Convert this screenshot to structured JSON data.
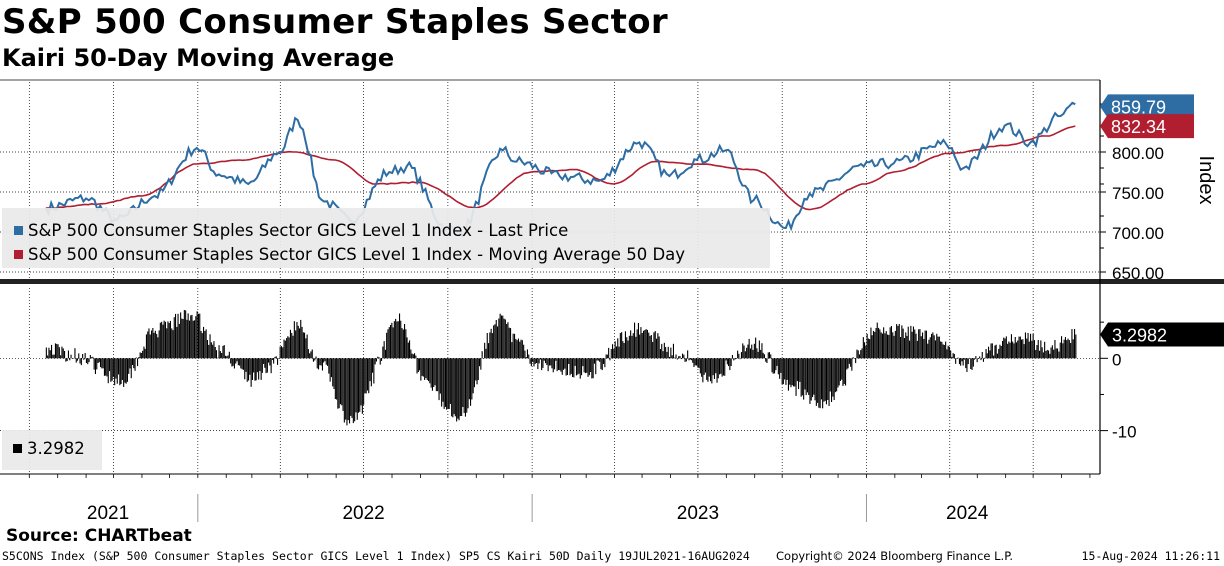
{
  "title": "S&P 500 Consumer Staples Sector",
  "subtitle": "Kairi 50-Day Moving Average",
  "source": "Source: CHARTbeat",
  "footer": {
    "left": "S5CONS Index (S&P 500 Consumer Staples Sector GICS Level 1 Index) SP5 CS Kairi 50D  Daily 19JUL2021-16AUG2024",
    "middle": "Copyright© 2024 Bloomberg Finance L.P.",
    "right": "15-Aug-2024 11:26:11"
  },
  "colors": {
    "price": "#2e6da4",
    "ma": "#b01e30",
    "bars": "#000000",
    "grid": "#000000"
  },
  "chart_data": [
    {
      "type": "line",
      "ylabel": "Index",
      "ylim": [
        640,
        890
      ],
      "yticks": [
        "650.00",
        "700.00",
        "750.00",
        "800.00"
      ],
      "x_years": [
        "2021",
        "2022",
        "2023",
        "2024"
      ],
      "date_range": [
        "2021-07-19",
        "2024-08-16"
      ],
      "legend": [
        "S&P 500 Consumer Staples Sector GICS Level 1 Index - Last Price",
        "S&P 500 Consumer Staples Sector GICS Level 1 Index - Moving Average 50 Day"
      ],
      "series": [
        {
          "name": "S&P 500 Consumer Staples Sector GICS Level 1 Index - Last Price",
          "last": "859.79",
          "x": [
            "2021-07-19",
            "2021-09-01",
            "2021-10-05",
            "2021-11-15",
            "2021-12-31",
            "2022-01-24",
            "2022-02-25",
            "2022-03-31",
            "2022-04-20",
            "2022-05-19",
            "2022-06-16",
            "2022-07-29",
            "2022-08-17",
            "2022-09-30",
            "2022-10-14",
            "2022-11-30",
            "2022-12-15",
            "2023-01-31",
            "2023-03-15",
            "2023-04-28",
            "2023-05-31",
            "2023-06-30",
            "2023-07-31",
            "2023-08-31",
            "2023-10-05",
            "2023-10-31",
            "2023-12-29",
            "2024-01-31",
            "2024-03-28",
            "2024-04-16",
            "2024-05-31",
            "2024-06-28",
            "2024-07-31",
            "2024-08-16"
          ],
          "y": [
            730,
            742,
            715,
            745,
            805,
            772,
            760,
            800,
            840,
            738,
            715,
            775,
            782,
            705,
            700,
            802,
            788,
            770,
            764,
            812,
            770,
            790,
            802,
            740,
            705,
            748,
            782,
            786,
            810,
            780,
            833,
            812,
            845,
            859.79
          ]
        },
        {
          "name": "S&P 500 Consumer Staples Sector GICS Level 1 Index - Moving Average 50 Day",
          "last": "832.34",
          "x": [
            "2021-07-19",
            "2021-09-15",
            "2021-11-01",
            "2021-12-31",
            "2022-02-15",
            "2022-04-15",
            "2022-05-31",
            "2022-07-15",
            "2022-08-31",
            "2022-10-31",
            "2022-12-31",
            "2023-02-15",
            "2023-03-31",
            "2023-05-15",
            "2023-06-30",
            "2023-08-31",
            "2023-10-31",
            "2023-12-31",
            "2024-01-31",
            "2024-03-31",
            "2024-05-31",
            "2024-07-15",
            "2024-08-16"
          ],
          "y": [
            730,
            735,
            745,
            785,
            790,
            800,
            790,
            760,
            762,
            730,
            775,
            778,
            760,
            788,
            785,
            778,
            728,
            760,
            775,
            798,
            808,
            820,
            832.34
          ]
        }
      ]
    },
    {
      "type": "bar",
      "ylim": [
        -16,
        10
      ],
      "yticks": [
        "0",
        "-10"
      ],
      "legend": [
        "3.2982"
      ],
      "series": [
        {
          "name": "3.2982",
          "last": "3.2982",
          "x": [
            "2021-07-19",
            "2021-08-15",
            "2021-10-10",
            "2021-11-15",
            "2021-12-25",
            "2022-01-25",
            "2022-03-01",
            "2022-03-20",
            "2022-04-20",
            "2022-05-15",
            "2022-06-15",
            "2022-08-10",
            "2022-09-05",
            "2022-09-25",
            "2022-10-14",
            "2022-11-25",
            "2022-12-15",
            "2023-01-01",
            "2023-03-01",
            "2023-04-25",
            "2023-06-15",
            "2023-07-10",
            "2023-08-31",
            "2023-10-10",
            "2023-11-15",
            "2024-01-15",
            "2024-03-20",
            "2024-04-15",
            "2024-06-15",
            "2024-07-20",
            "2024-08-16"
          ],
          "y": [
            1.5,
            0.5,
            -3,
            3.8,
            6,
            1,
            -3,
            -1,
            4.5,
            -1,
            -9,
            5.2,
            -3,
            -6,
            -8,
            5.5,
            2.5,
            -0.5,
            -2,
            4,
            0.5,
            -3,
            2,
            -4,
            -6,
            4,
            3,
            -1,
            3,
            1.5,
            3.2982
          ]
        }
      ]
    }
  ]
}
